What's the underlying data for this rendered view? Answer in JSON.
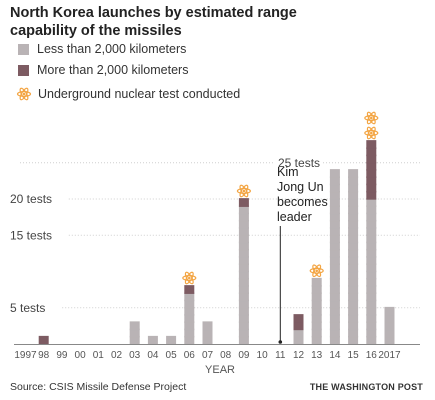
{
  "title": "North Korea launches by estimated range capability of the missiles",
  "legend": {
    "short": "Less than 2,000 kilometers",
    "long": "More than 2,000 kilometers",
    "nuclear": "Underground nuclear test conducted"
  },
  "colors": {
    "short": "#b9b3b5",
    "long": "#7d5b62",
    "nuclear": "#f3a543"
  },
  "annotation": [
    "Kim",
    "Jong Un",
    "becomes",
    "leader"
  ],
  "source": "Source: CSIS Missile Defense Project",
  "credit": "THE WASHINGTON POST",
  "chart_data": {
    "type": "bar",
    "stacked": true,
    "xlabel": "YEAR",
    "categories": [
      "1997",
      "98",
      "99",
      "00",
      "01",
      "02",
      "03",
      "04",
      "05",
      "06",
      "07",
      "08",
      "09",
      "10",
      "11",
      "12",
      "13",
      "14",
      "15",
      "16",
      "2017"
    ],
    "series": [
      {
        "name": "Less than 2,000 kilometers",
        "values": [
          0,
          0,
          0,
          0,
          0,
          0,
          3,
          1,
          1,
          7,
          3,
          0,
          19,
          0,
          0,
          2,
          9,
          24,
          24,
          20,
          5
        ]
      },
      {
        "name": "More than 2,000 kilometers",
        "values": [
          0,
          1,
          0,
          0,
          0,
          0,
          0,
          0,
          0,
          1,
          0,
          0,
          1,
          0,
          0,
          2,
          0,
          0,
          0,
          8,
          0
        ]
      }
    ],
    "nuclear_tests": {
      "06": 1,
      "09": 1,
      "13": 1,
      "16": 2
    },
    "y_ticks": [
      {
        "value": 5,
        "label": "5 tests"
      },
      {
        "value": 15,
        "label": "15 tests"
      },
      {
        "value": 20,
        "label": "20 tests"
      },
      {
        "value": 25,
        "label": "25 tests"
      }
    ],
    "ylim": [
      0,
      29
    ],
    "annotation_year": "11",
    "grid": true
  }
}
